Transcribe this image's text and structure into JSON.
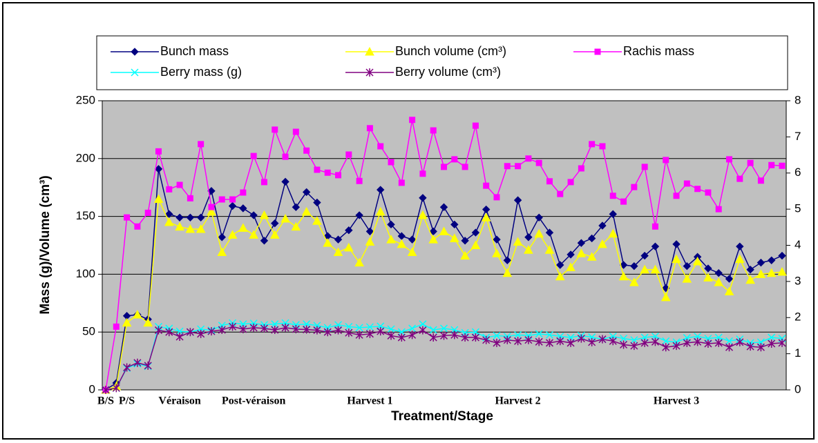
{
  "chart_data": {
    "type": "line",
    "categories": [
      "B/S",
      null,
      "P/S",
      null,
      null,
      null,
      null,
      "Véraison",
      null,
      null,
      null,
      null,
      null,
      null,
      "Post-véraison",
      null,
      null,
      null,
      null,
      null,
      null,
      null,
      null,
      null,
      null,
      "Harvest 1",
      null,
      null,
      null,
      null,
      null,
      null,
      null,
      null,
      null,
      null,
      null,
      null,
      null,
      "Harvest 2",
      null,
      null,
      null,
      null,
      null,
      null,
      null,
      null,
      null,
      null,
      null,
      null,
      null,
      null,
      "Harvest 3",
      null,
      null,
      null,
      null,
      null,
      null,
      null,
      null,
      null,
      null
    ],
    "xlabel": "Treatment/Stage",
    "ylabel": "Mass (g)/Volume (cm³)",
    "ylim": [
      0,
      250
    ],
    "yticks": [
      0,
      50,
      100,
      150,
      200,
      250
    ],
    "y2lim": [
      0,
      8
    ],
    "y2ticks": [
      0,
      1,
      2,
      3,
      4,
      5,
      6,
      7,
      8
    ],
    "grid": true,
    "series": [
      {
        "name": "Bunch mass",
        "color": "#000080",
        "marker": "diamond",
        "values": [
          0,
          6,
          64,
          65,
          61,
          191,
          152,
          149,
          149,
          149,
          172,
          132,
          159,
          157,
          151,
          129,
          144,
          180,
          158,
          171,
          162,
          133,
          130,
          138,
          151,
          137,
          173,
          143,
          133,
          130,
          166,
          137,
          158,
          143,
          129,
          136,
          156,
          130,
          112,
          164,
          132,
          149,
          136,
          108,
          117,
          127,
          131,
          142,
          152,
          108,
          107,
          116,
          124,
          88,
          126,
          107,
          115,
          105,
          101,
          96,
          124,
          104,
          110,
          112,
          116
        ]
      },
      {
        "name": "Bunch volume (cm³)",
        "color": "#ffff00",
        "marker": "triangle",
        "values": [
          0,
          3,
          58,
          65,
          58,
          165,
          145,
          141,
          139,
          139,
          154,
          119,
          134,
          140,
          134,
          151,
          134,
          148,
          141,
          154,
          146,
          127,
          119,
          123,
          110,
          128,
          154,
          130,
          126,
          119,
          151,
          130,
          137,
          131,
          116,
          125,
          149,
          118,
          101,
          128,
          121,
          135,
          121,
          98,
          106,
          118,
          115,
          126,
          135,
          98,
          93,
          104,
          104,
          80,
          113,
          96,
          111,
          97,
          93,
          85,
          113,
          95,
          100,
          101,
          102
        ]
      },
      {
        "name": "Rachis mass",
        "color": "#ff00ff",
        "marker": "square",
        "axis": "y2",
        "values": [
          0,
          1.75,
          4.77,
          4.52,
          4.9,
          6.6,
          5.55,
          5.67,
          5.3,
          6.8,
          5.06,
          5.27,
          5.27,
          5.46,
          6.47,
          5.75,
          7.2,
          6.45,
          7.14,
          6.62,
          6.09,
          6.01,
          5.94,
          6.51,
          5.78,
          7.24,
          6.74,
          6.3,
          5.73,
          7.47,
          5.98,
          7.18,
          6.17,
          6.38,
          6.17,
          7.31,
          5.65,
          5.33,
          6.19,
          6.19,
          6.4,
          6.28,
          5.77,
          5.42,
          5.75,
          6.13,
          6.8,
          6.74,
          5.37,
          5.21,
          5.61,
          6.17,
          4.52,
          6.36,
          5.37,
          5.71,
          5.56,
          5.46,
          5.0,
          6.38,
          5.84,
          6.28,
          5.79,
          6.22,
          6.2
        ]
      },
      {
        "name": "Berry mass (g)",
        "color": "#00ffff",
        "marker": "x",
        "axis": "y2",
        "values": [
          0,
          0.05,
          0.6,
          0.72,
          0.65,
          1.75,
          1.7,
          1.62,
          1.6,
          1.68,
          1.65,
          1.78,
          1.85,
          1.82,
          1.84,
          1.8,
          1.82,
          1.85,
          1.8,
          1.82,
          1.78,
          1.72,
          1.8,
          1.75,
          1.72,
          1.74,
          1.76,
          1.68,
          1.6,
          1.7,
          1.82,
          1.66,
          1.7,
          1.66,
          1.58,
          1.6,
          1.45,
          1.5,
          1.48,
          1.52,
          1.5,
          1.55,
          1.52,
          1.48,
          1.45,
          1.5,
          1.46,
          1.4,
          1.48,
          1.42,
          1.38,
          1.45,
          1.48,
          1.35,
          1.32,
          1.44,
          1.48,
          1.42,
          1.45,
          1.35,
          1.4,
          1.3,
          1.32,
          1.45,
          1.42
        ]
      },
      {
        "name": "Berry volume (cm³)",
        "color": "#800080",
        "marker": "star",
        "axis": "y2",
        "values": [
          0,
          0.05,
          0.62,
          0.75,
          0.67,
          1.65,
          1.6,
          1.47,
          1.6,
          1.55,
          1.62,
          1.66,
          1.75,
          1.68,
          1.72,
          1.7,
          1.66,
          1.72,
          1.68,
          1.67,
          1.65,
          1.6,
          1.65,
          1.58,
          1.52,
          1.55,
          1.62,
          1.5,
          1.45,
          1.52,
          1.65,
          1.45,
          1.5,
          1.52,
          1.45,
          1.45,
          1.38,
          1.3,
          1.38,
          1.35,
          1.38,
          1.33,
          1.3,
          1.35,
          1.3,
          1.42,
          1.32,
          1.4,
          1.35,
          1.25,
          1.22,
          1.3,
          1.33,
          1.18,
          1.22,
          1.3,
          1.33,
          1.28,
          1.3,
          1.18,
          1.32,
          1.2,
          1.18,
          1.28,
          1.3
        ]
      }
    ]
  }
}
